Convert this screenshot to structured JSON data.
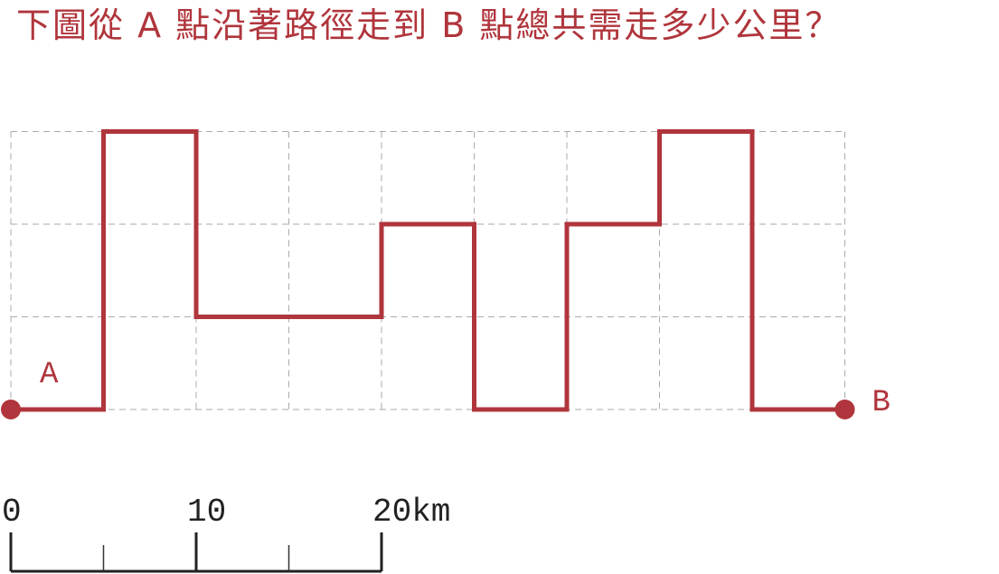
{
  "question": "下圖從 A 點沿著路徑走到 B 點總共需走多少公里？",
  "colors": {
    "path": "#b0353c",
    "grid": "#aaaaaa",
    "scale": "#222222"
  },
  "grid": {
    "columns": 9,
    "rows": 3
  },
  "path_points": [
    [
      0,
      0
    ],
    [
      1,
      0
    ],
    [
      1,
      3
    ],
    [
      2,
      3
    ],
    [
      2,
      1
    ],
    [
      4,
      1
    ],
    [
      4,
      2
    ],
    [
      5,
      2
    ],
    [
      5,
      0
    ],
    [
      6,
      0
    ],
    [
      6,
      2
    ],
    [
      7,
      2
    ],
    [
      7,
      3
    ],
    [
      8,
      3
    ],
    [
      8,
      0
    ],
    [
      9,
      0
    ]
  ],
  "points": {
    "start": {
      "label": "A"
    },
    "end": {
      "label": "B"
    }
  },
  "scale_bar": {
    "ticks": [
      {
        "value": 0,
        "label": "0"
      },
      {
        "value": 10,
        "label": "10"
      },
      {
        "value": 20,
        "label": "20km"
      }
    ],
    "minor_ticks": [
      5,
      15
    ],
    "max": 20
  }
}
